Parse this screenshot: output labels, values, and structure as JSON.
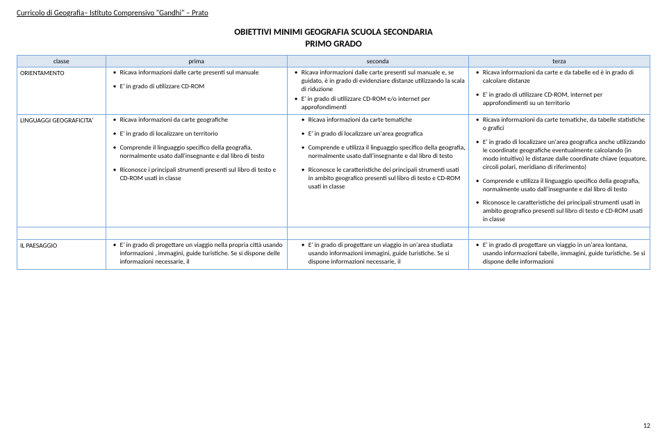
{
  "header": "Curricolo di Geografia– Istituto Comprensivo \"Gandhi\" – Prato",
  "title": "OBIETTIVI MINIMI GEOGRAFIA  SCUOLA SECONDARIA",
  "subtitle": "PRIMO GRADO",
  "cols": {
    "c0": "classe",
    "c1": "prima",
    "c2": "seconda",
    "c3": "terza"
  },
  "rows": {
    "orient": {
      "label": "ORIENTAMENTO",
      "c1": [
        "Ricava informazioni dalle carte presenti sul manuale",
        "",
        "E' in grado di utilizzare CD-ROM"
      ],
      "c2": [
        "Ricava informazioni  dalle carte presenti sul manuale e, se guidato, è in grado di evidenziare  distanze  utilizzando la scala di riduzione",
        "E' in grado di  utilizzare  CD-ROM e/o internet  per approfondimenti"
      ],
      "c3": [
        "Ricava informazioni da  carte e da tabelle ed è in grado di calcolare distanze",
        "",
        "E' in grado di  utilizzare  CD-ROM, internet  per approfondimenti  su un territorio"
      ]
    },
    "ling": {
      "label": "LINGUAGGI GEOGRAFICITA'",
      "c1": [
        "Ricava informazioni da carte geografiche",
        "",
        "E' in grado di localizzare un territorio",
        "",
        "Comprende il linguaggio specifico della geografia, normalmente usato dall'insegnante e dal libro di testo",
        "",
        "Riconosce i principali strumenti presenti sul libro di testo e CD-ROM  usati in classe"
      ],
      "c2": [
        {
          "sub": true,
          "t": "Ricava informazioni da carte tematiche"
        },
        {
          "sub": true,
          "t": ""
        },
        {
          "sub": true,
          "t": "E' in grado di localizzare un'area geografica"
        },
        "",
        {
          "sub": true,
          "t": "Comprende e utilizza il linguaggio specifico della geografia, normalmente usato dall'insegnante e dal libro di  testo"
        },
        "",
        {
          "sub": true,
          "t": "Riconosce le caratteristiche dei principali strumenti usati in ambito geografico presenti sul libro di testo e CD-ROM  usati in classe"
        }
      ],
      "c3": [
        "Ricava informazioni da carte tematiche, da tabelle statistiche o grafici",
        "",
        "E' in grado di localizzare un'area geografica anche utilizzando le coordinate geografiche eventualmente calcolando (in modo intuitivo) le distanze dalle coordinate chiave (equatore, circoli polari, meridiano di riferimento)",
        "",
        "Comprende e utilizza il linguaggio specifico della geografia, normalmente usato dall'insegnante e dal libro di testo",
        "",
        "Riconosce le caratteristiche dei principali strumenti usati in ambito geografico presenti sul libro di testo e CD-ROM  usati in classe"
      ]
    },
    "paes": {
      "label": "IL PAESAGGIO",
      "c1": [
        "E' in grado di progettare un viaggio nella propria città usando informazioni , immagini, guide turistiche. Se si dispone delle informazioni  necessarie, il"
      ],
      "c2": [
        {
          "sub": true,
          "t": "E' in grado di progettare un viaggio in un'area studiata usando informazioni   immagini, guide turistiche.  Se si dispone informazioni necessarie, il"
        }
      ],
      "c3": [
        "E' in grado di progettare un viaggio in un'area lontana, usando informazioni  tabelle, immagini, guide turistiche.  Se si dispone delle informazioni"
      ]
    }
  },
  "pagenum": "12"
}
